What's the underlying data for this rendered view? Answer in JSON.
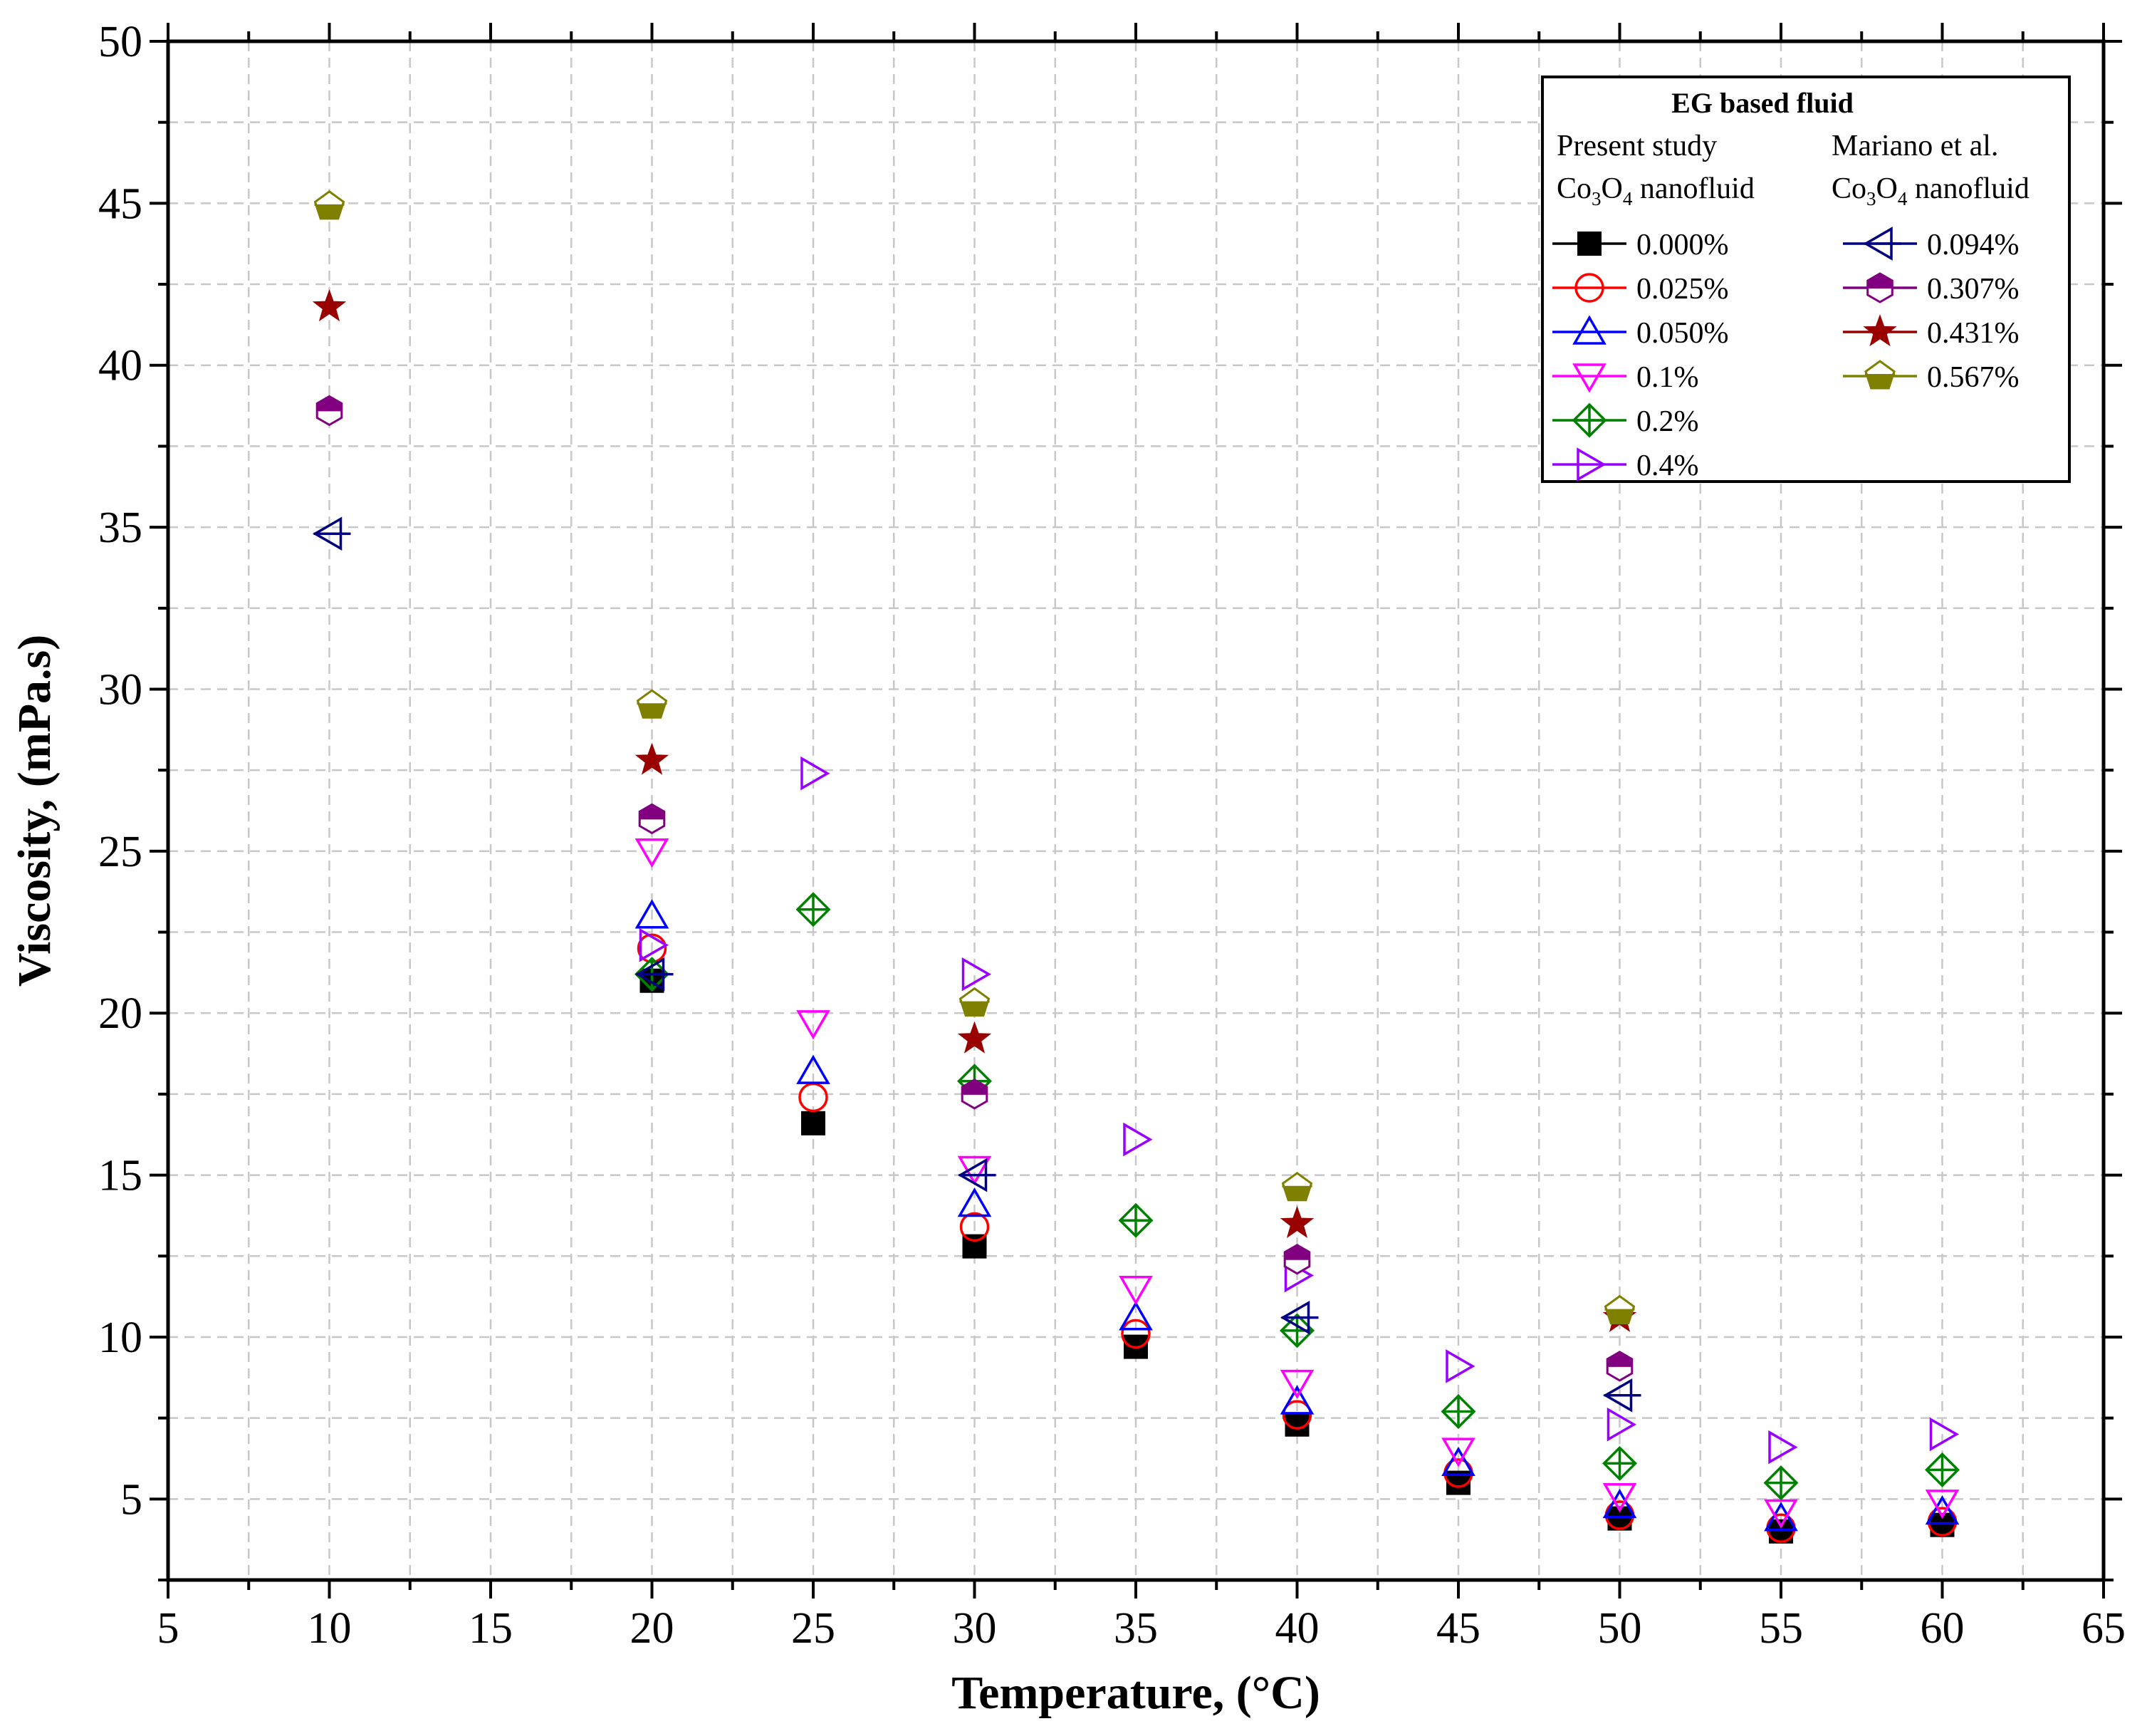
{
  "chart_data": {
    "type": "scatter",
    "title": "",
    "xlabel": "Temperature, (°C)",
    "ylabel": "Viscosity, (mPa.s)",
    "xlim": [
      5,
      65
    ],
    "ylim": [
      2.5,
      50
    ],
    "xticks": [
      5,
      10,
      15,
      20,
      25,
      30,
      35,
      40,
      45,
      50,
      55,
      60,
      65
    ],
    "yticks": [
      5,
      10,
      15,
      20,
      25,
      30,
      35,
      40,
      45,
      50
    ],
    "grid": true,
    "legend": {
      "placement": "top-right",
      "title": "EG based fluid",
      "left_header": "Present study",
      "right_header": "Mariano et al.",
      "right_header_color": "#0000ff",
      "subheader": {
        "prefix": "Co",
        "sub1": "3",
        "mid": "O",
        "sub2": "4",
        "suffix": " nanofluid"
      }
    },
    "series": [
      {
        "name": "0.000%",
        "group": "present",
        "marker": "square",
        "color": "#000000",
        "filled": true,
        "x": [
          20,
          25,
          30,
          35,
          40,
          45,
          50,
          55,
          60
        ],
        "y": [
          21.0,
          16.6,
          12.8,
          9.7,
          7.3,
          5.5,
          4.4,
          4.0,
          4.2
        ]
      },
      {
        "name": "0.025%",
        "group": "present",
        "marker": "circle",
        "color": "#ff0000",
        "filled": false,
        "x": [
          20,
          25,
          30,
          35,
          40,
          45,
          50,
          55,
          60
        ],
        "y": [
          22.0,
          17.4,
          13.4,
          10.1,
          7.6,
          5.8,
          4.5,
          4.1,
          4.3
        ]
      },
      {
        "name": "0.050%",
        "group": "present",
        "marker": "triangle-up",
        "color": "#0000ff",
        "filled": false,
        "x": [
          20,
          25,
          30,
          35,
          40,
          45,
          50,
          55,
          60
        ],
        "y": [
          23.0,
          18.2,
          14.1,
          10.6,
          8.0,
          6.1,
          4.8,
          4.4,
          4.6
        ]
      },
      {
        "name": "0.1%",
        "group": "present",
        "marker": "triangle-down",
        "color": "#ff00ff",
        "filled": false,
        "x": [
          20,
          25,
          30,
          35,
          40,
          45,
          50,
          55,
          60
        ],
        "y": [
          25.0,
          19.7,
          15.2,
          11.5,
          8.6,
          6.5,
          5.1,
          4.6,
          4.9
        ]
      },
      {
        "name": "0.2%",
        "group": "present",
        "marker": "diamond-cross",
        "color": "#008000",
        "filled": false,
        "x": [
          20,
          25,
          30,
          35,
          40,
          45,
          50,
          55,
          60
        ],
        "y": [
          21.2,
          23.2,
          17.9,
          13.6,
          10.2,
          7.7,
          6.1,
          5.5,
          5.9
        ]
      },
      {
        "name": "0.4%",
        "group": "present",
        "marker": "triangle-right",
        "color": "#9900ff",
        "filled": false,
        "x": [
          20,
          25,
          30,
          35,
          40,
          45,
          50,
          55,
          60
        ],
        "y": [
          22.1,
          27.4,
          21.2,
          16.1,
          11.9,
          9.1,
          7.3,
          6.6,
          7.0
        ]
      },
      {
        "name": "0.094%",
        "group": "mariano",
        "marker": "triangle-left",
        "color": "#000080",
        "filled": false,
        "x": [
          10,
          20,
          30,
          40,
          50
        ],
        "y": [
          34.8,
          21.2,
          15.0,
          10.6,
          8.2
        ]
      },
      {
        "name": "0.307%",
        "group": "mariano",
        "marker": "hexagon-half",
        "color": "#800080",
        "filled": true,
        "x": [
          10,
          20,
          30,
          40,
          50
        ],
        "y": [
          38.6,
          26.0,
          17.5,
          12.4,
          9.1
        ]
      },
      {
        "name": "0.431%",
        "group": "mariano",
        "marker": "star",
        "color": "#990000",
        "filled": true,
        "x": [
          10,
          20,
          30,
          40,
          50
        ],
        "y": [
          41.8,
          27.8,
          19.2,
          13.5,
          10.6
        ]
      },
      {
        "name": "0.567%",
        "group": "mariano",
        "marker": "pentagon-half",
        "color": "#808000",
        "filled": true,
        "x": [
          10,
          20,
          30,
          40,
          50
        ],
        "y": [
          44.9,
          29.5,
          20.3,
          14.6,
          10.8
        ]
      }
    ]
  }
}
